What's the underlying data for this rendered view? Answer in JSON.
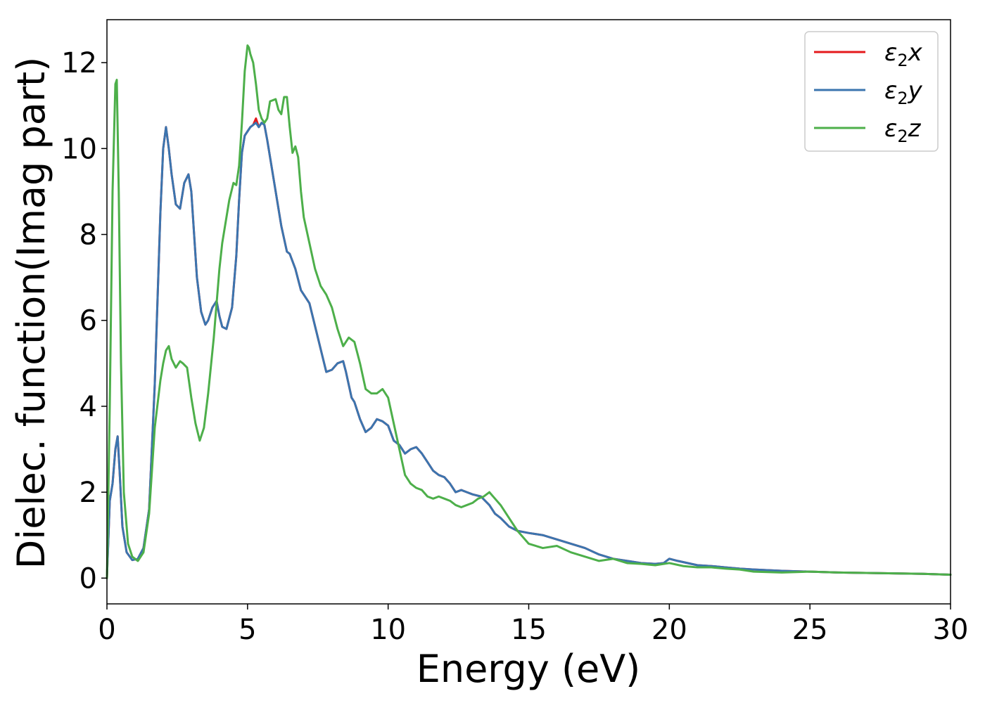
{
  "chart_data": {
    "type": "line",
    "xlabel": "Energy (eV)",
    "ylabel": "Dielec. function(Imag part)",
    "xlim": [
      0,
      30
    ],
    "ylim": [
      -0.6,
      13.0
    ],
    "xticks": [
      0,
      5,
      10,
      15,
      20,
      25,
      30
    ],
    "xtick_labels": [
      "0",
      "5",
      "10",
      "15",
      "20",
      "25",
      "30"
    ],
    "yticks": [
      0,
      2,
      4,
      6,
      8,
      10,
      12
    ],
    "ytick_labels": [
      "0",
      "2",
      "4",
      "6",
      "8",
      "10",
      "12"
    ],
    "grid": false,
    "legend_position": "top-right",
    "series": [
      {
        "name": "ε2x",
        "name_base": "ε",
        "name_sub": "2",
        "name_var": "x",
        "color": "#e41a1c",
        "x": [
          0,
          0.1,
          0.2,
          0.3,
          0.38,
          0.45,
          0.55,
          0.7,
          0.9,
          1.1,
          1.3,
          1.5,
          1.7,
          1.9,
          2.0,
          2.1,
          2.2,
          2.3,
          2.45,
          2.6,
          2.75,
          2.9,
          3.0,
          3.1,
          3.2,
          3.35,
          3.5,
          3.6,
          3.75,
          3.9,
          4.0,
          4.1,
          4.25,
          4.45,
          4.6,
          4.7,
          4.8,
          4.9,
          5.0,
          5.1,
          5.2,
          5.3,
          5.4,
          5.5,
          5.6,
          5.7,
          5.8,
          6.0,
          6.2,
          6.4,
          6.5,
          6.7,
          6.9,
          7.0,
          7.2,
          7.5,
          7.8,
          8.0,
          8.2,
          8.4,
          8.5,
          8.6,
          8.7,
          8.8,
          9.0,
          9.2,
          9.4,
          9.6,
          9.8,
          10.0,
          10.2,
          10.4,
          10.6,
          10.8,
          11.0,
          11.2,
          11.4,
          11.6,
          11.8,
          12.0,
          12.2,
          12.4,
          12.6,
          12.8,
          13.0,
          13.3,
          13.6,
          13.8,
          14.0,
          14.3,
          14.6,
          15.0,
          15.5,
          16.0,
          16.5,
          17.0,
          17.5,
          18.0,
          18.5,
          19.0,
          19.5,
          19.8,
          20.0,
          20.3,
          21.0,
          21.5,
          22.0,
          22.5,
          23.0,
          24.0,
          25.0,
          26.0,
          27.0,
          28.0,
          29.0,
          30.0
        ],
        "y": [
          0,
          1.8,
          2.2,
          3.0,
          3.3,
          2.5,
          1.2,
          0.6,
          0.42,
          0.45,
          0.7,
          1.6,
          4.5,
          8.5,
          10.0,
          10.5,
          10.0,
          9.4,
          8.7,
          8.6,
          9.2,
          9.4,
          9.0,
          8.0,
          7.0,
          6.2,
          5.9,
          6.0,
          6.3,
          6.45,
          6.1,
          5.85,
          5.8,
          6.3,
          7.5,
          8.8,
          9.9,
          10.3,
          10.4,
          10.5,
          10.55,
          10.7,
          10.5,
          10.6,
          10.55,
          10.2,
          9.8,
          9.0,
          8.2,
          7.6,
          7.55,
          7.2,
          6.7,
          6.6,
          6.4,
          5.6,
          4.8,
          4.85,
          5.0,
          5.05,
          4.8,
          4.5,
          4.2,
          4.1,
          3.7,
          3.4,
          3.5,
          3.7,
          3.65,
          3.55,
          3.2,
          3.1,
          2.9,
          3.0,
          3.05,
          2.9,
          2.7,
          2.5,
          2.4,
          2.35,
          2.2,
          2.0,
          2.05,
          2.0,
          1.95,
          1.9,
          1.7,
          1.5,
          1.4,
          1.2,
          1.1,
          1.05,
          1.0,
          0.9,
          0.8,
          0.7,
          0.55,
          0.45,
          0.4,
          0.35,
          0.33,
          0.35,
          0.45,
          0.4,
          0.3,
          0.28,
          0.25,
          0.22,
          0.2,
          0.17,
          0.15,
          0.13,
          0.12,
          0.11,
          0.1,
          0.08
        ]
      },
      {
        "name": "ε2y",
        "name_base": "ε",
        "name_sub": "2",
        "name_var": "y",
        "color": "#3b75af",
        "x": [
          0,
          0.1,
          0.2,
          0.3,
          0.38,
          0.45,
          0.55,
          0.7,
          0.9,
          1.1,
          1.3,
          1.5,
          1.7,
          1.9,
          2.0,
          2.1,
          2.2,
          2.3,
          2.45,
          2.6,
          2.75,
          2.9,
          3.0,
          3.1,
          3.2,
          3.35,
          3.5,
          3.6,
          3.75,
          3.9,
          4.0,
          4.1,
          4.25,
          4.45,
          4.6,
          4.7,
          4.8,
          4.9,
          5.0,
          5.1,
          5.2,
          5.3,
          5.4,
          5.5,
          5.6,
          5.7,
          5.8,
          6.0,
          6.2,
          6.4,
          6.5,
          6.7,
          6.9,
          7.0,
          7.2,
          7.5,
          7.8,
          8.0,
          8.2,
          8.4,
          8.5,
          8.6,
          8.7,
          8.8,
          9.0,
          9.2,
          9.4,
          9.6,
          9.8,
          10.0,
          10.2,
          10.4,
          10.6,
          10.8,
          11.0,
          11.2,
          11.4,
          11.6,
          11.8,
          12.0,
          12.2,
          12.4,
          12.6,
          12.8,
          13.0,
          13.3,
          13.6,
          13.8,
          14.0,
          14.3,
          14.6,
          15.0,
          15.5,
          16.0,
          16.5,
          17.0,
          17.5,
          18.0,
          18.5,
          19.0,
          19.5,
          19.8,
          20.0,
          20.3,
          21.0,
          21.5,
          22.0,
          22.5,
          23.0,
          24.0,
          25.0,
          26.0,
          27.0,
          28.0,
          29.0,
          30.0
        ],
        "y": [
          0,
          1.8,
          2.2,
          3.0,
          3.3,
          2.5,
          1.2,
          0.6,
          0.42,
          0.45,
          0.7,
          1.6,
          4.5,
          8.5,
          10.0,
          10.5,
          10.0,
          9.4,
          8.7,
          8.6,
          9.2,
          9.4,
          9.0,
          8.0,
          7.0,
          6.2,
          5.9,
          6.0,
          6.3,
          6.45,
          6.1,
          5.85,
          5.8,
          6.3,
          7.5,
          8.8,
          9.9,
          10.3,
          10.4,
          10.5,
          10.55,
          10.6,
          10.5,
          10.6,
          10.55,
          10.2,
          9.8,
          9.0,
          8.2,
          7.6,
          7.55,
          7.2,
          6.7,
          6.6,
          6.4,
          5.6,
          4.8,
          4.85,
          5.0,
          5.05,
          4.8,
          4.5,
          4.2,
          4.1,
          3.7,
          3.4,
          3.5,
          3.7,
          3.65,
          3.55,
          3.2,
          3.1,
          2.9,
          3.0,
          3.05,
          2.9,
          2.7,
          2.5,
          2.4,
          2.35,
          2.2,
          2.0,
          2.05,
          2.0,
          1.95,
          1.9,
          1.7,
          1.5,
          1.4,
          1.2,
          1.1,
          1.05,
          1.0,
          0.9,
          0.8,
          0.7,
          0.55,
          0.45,
          0.4,
          0.35,
          0.33,
          0.35,
          0.45,
          0.4,
          0.3,
          0.28,
          0.25,
          0.22,
          0.2,
          0.17,
          0.15,
          0.13,
          0.12,
          0.11,
          0.1,
          0.08
        ]
      },
      {
        "name": "ε2z",
        "name_base": "ε",
        "name_sub": "2",
        "name_var": "z",
        "color": "#4daf4a",
        "x": [
          0,
          0.1,
          0.2,
          0.3,
          0.35,
          0.42,
          0.5,
          0.6,
          0.75,
          0.9,
          1.1,
          1.3,
          1.5,
          1.7,
          1.9,
          2.0,
          2.1,
          2.2,
          2.3,
          2.45,
          2.6,
          2.7,
          2.85,
          3.0,
          3.15,
          3.3,
          3.45,
          3.6,
          3.8,
          4.0,
          4.1,
          4.2,
          4.35,
          4.5,
          4.6,
          4.7,
          4.8,
          4.9,
          5.0,
          5.05,
          5.1,
          5.2,
          5.3,
          5.4,
          5.5,
          5.6,
          5.7,
          5.8,
          6.0,
          6.1,
          6.2,
          6.3,
          6.4,
          6.5,
          6.6,
          6.7,
          6.8,
          6.9,
          7.0,
          7.2,
          7.4,
          7.6,
          7.8,
          8.0,
          8.2,
          8.4,
          8.6,
          8.8,
          9.0,
          9.2,
          9.4,
          9.6,
          9.8,
          10.0,
          10.2,
          10.4,
          10.6,
          10.8,
          11.0,
          11.2,
          11.4,
          11.6,
          11.8,
          12.0,
          12.2,
          12.4,
          12.6,
          12.8,
          13.0,
          13.2,
          13.4,
          13.6,
          13.8,
          14.0,
          14.3,
          14.6,
          15.0,
          15.5,
          16.0,
          16.5,
          17.0,
          17.5,
          18.0,
          18.5,
          19.0,
          19.5,
          20.0,
          20.5,
          21.0,
          21.5,
          22.0,
          22.5,
          23.0,
          24.0,
          25.0,
          26.0,
          27.0,
          28.0,
          29.0,
          30.0
        ],
        "y": [
          0,
          4.0,
          9.0,
          11.5,
          11.6,
          9.0,
          5.0,
          2.0,
          0.8,
          0.5,
          0.4,
          0.6,
          1.5,
          3.5,
          4.6,
          5.0,
          5.3,
          5.4,
          5.1,
          4.9,
          5.05,
          5.0,
          4.9,
          4.2,
          3.6,
          3.2,
          3.5,
          4.3,
          5.6,
          7.2,
          7.8,
          8.2,
          8.8,
          9.2,
          9.15,
          9.6,
          10.6,
          11.8,
          12.4,
          12.35,
          12.2,
          12.0,
          11.5,
          10.9,
          10.7,
          10.6,
          10.7,
          11.1,
          11.15,
          10.9,
          10.8,
          11.2,
          11.2,
          10.5,
          9.9,
          10.05,
          9.8,
          9.0,
          8.4,
          7.8,
          7.2,
          6.8,
          6.6,
          6.3,
          5.8,
          5.4,
          5.6,
          5.5,
          5.0,
          4.4,
          4.3,
          4.3,
          4.4,
          4.2,
          3.6,
          3.0,
          2.4,
          2.2,
          2.1,
          2.05,
          1.9,
          1.85,
          1.9,
          1.85,
          1.8,
          1.7,
          1.65,
          1.7,
          1.75,
          1.85,
          1.9,
          2.0,
          1.85,
          1.7,
          1.4,
          1.1,
          0.8,
          0.7,
          0.75,
          0.6,
          0.5,
          0.4,
          0.45,
          0.35,
          0.33,
          0.3,
          0.35,
          0.28,
          0.25,
          0.25,
          0.22,
          0.2,
          0.15,
          0.13,
          0.15,
          0.13,
          0.12,
          0.11,
          0.1,
          0.08
        ]
      }
    ]
  }
}
